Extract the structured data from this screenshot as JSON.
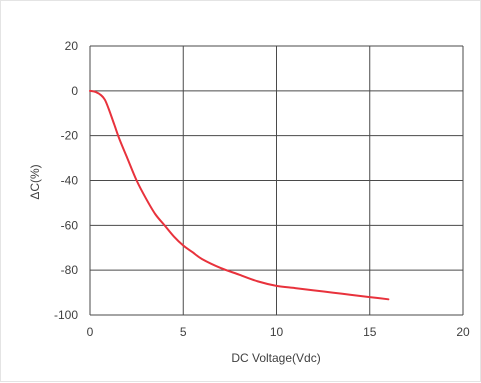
{
  "chart_data": {
    "type": "line",
    "title": "",
    "xlabel": "DC Voltage(Vdc)",
    "ylabel": "ΔC(%)",
    "xlim": [
      0,
      20
    ],
    "ylim": [
      -100,
      20
    ],
    "x_ticks": [
      "0",
      "5",
      "10",
      "15",
      "20"
    ],
    "y_ticks": [
      "20",
      "0",
      "-20",
      "-40",
      "-60",
      "-80",
      "-100"
    ],
    "grid": true,
    "legend": "none",
    "series": [
      {
        "color": "#e8323c",
        "points": [
          [
            0,
            0
          ],
          [
            0.3,
            -0.5
          ],
          [
            0.6,
            -2
          ],
          [
            0.8,
            -4
          ],
          [
            1.0,
            -8
          ],
          [
            1.3,
            -15
          ],
          [
            1.6,
            -22
          ],
          [
            2.0,
            -30
          ],
          [
            2.5,
            -40
          ],
          [
            3.0,
            -48
          ],
          [
            3.5,
            -55
          ],
          [
            4.0,
            -60
          ],
          [
            4.5,
            -65
          ],
          [
            5.0,
            -69
          ],
          [
            5.5,
            -72
          ],
          [
            6.0,
            -75
          ],
          [
            7.0,
            -79
          ],
          [
            8.0,
            -82
          ],
          [
            9.0,
            -85
          ],
          [
            10.0,
            -87
          ],
          [
            11.0,
            -88
          ],
          [
            12.0,
            -89
          ],
          [
            13.0,
            -90
          ],
          [
            14.0,
            -91
          ],
          [
            15.0,
            -92
          ],
          [
            16.0,
            -93
          ]
        ]
      }
    ]
  }
}
